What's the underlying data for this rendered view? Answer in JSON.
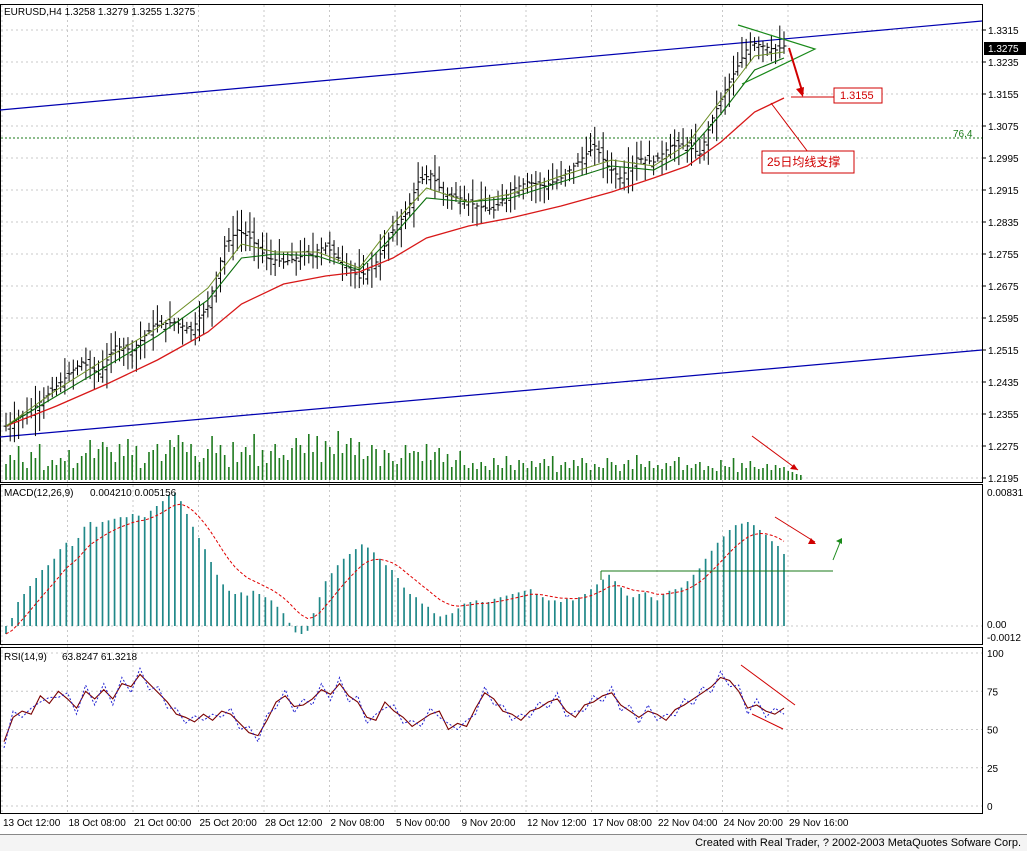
{
  "chart_data": {
    "type": "candlestick",
    "symbol_header": "EURUSD,H4  1.3258 1.3279 1.3255 1.3275",
    "price_axis": {
      "ylim": [
        1.2195,
        1.3335
      ],
      "ticks": [
        "1.3315",
        "1.3235",
        "1.3155",
        "1.3075",
        "1.2995",
        "1.2915",
        "1.2835",
        "1.2755",
        "1.2675",
        "1.2595",
        "1.2515",
        "1.2435",
        "1.2355",
        "1.2275",
        "1.2195"
      ],
      "current_price_label": "1.3275"
    },
    "fib_level": {
      "label": "76.4",
      "value": 1.3045
    },
    "target_label": "1.3155",
    "annotation": "25日均线支撑",
    "x_labels": [
      "13 Oct 12:00",
      "18 Oct 08:00",
      "21 Oct 00:00",
      "25 Oct 20:00",
      "28 Oct 12:00",
      "2 Nov 08:00",
      "5 Nov 00:00",
      "9 Nov 20:00",
      "12 Nov 12:00",
      "17 Nov 08:00",
      "22 Nov 04:00",
      "24 Nov 20:00",
      "29 Nov 16:00"
    ],
    "series": [
      {
        "name": "MACD(12,26,9)",
        "values_text": "0.004210 0.005156",
        "axis_ticks": [
          "0.00831",
          "0.00",
          "-0.0012"
        ]
      },
      {
        "name": "RSI(14,9)",
        "values_text": "63.8247 61.3218",
        "axis_ticks": [
          "100",
          "75",
          "50",
          "25",
          "0"
        ]
      }
    ],
    "price_path": [
      [
        0,
        1.2325
      ],
      [
        6,
        1.2365
      ],
      [
        12,
        1.2425
      ],
      [
        18,
        1.2485
      ],
      [
        22,
        1.2455
      ],
      [
        26,
        1.2525
      ],
      [
        30,
        1.2515
      ],
      [
        35,
        1.2575
      ],
      [
        40,
        1.2585
      ],
      [
        44,
        1.2565
      ],
      [
        48,
        1.2625
      ],
      [
        52,
        1.2775
      ],
      [
        55,
        1.2815
      ],
      [
        58,
        1.2795
      ],
      [
        62,
        1.2745
      ],
      [
        66,
        1.2735
      ],
      [
        72,
        1.2755
      ],
      [
        76,
        1.2775
      ],
      [
        80,
        1.2735
      ],
      [
        84,
        1.2695
      ],
      [
        88,
        1.2735
      ],
      [
        92,
        1.2815
      ],
      [
        95,
        1.2855
      ],
      [
        98,
        1.2935
      ],
      [
        101,
        1.2955
      ],
      [
        104,
        1.2905
      ],
      [
        108,
        1.2895
      ],
      [
        112,
        1.2875
      ],
      [
        116,
        1.2865
      ],
      [
        120,
        1.2915
      ],
      [
        124,
        1.2935
      ],
      [
        128,
        1.2925
      ],
      [
        132,
        1.2945
      ],
      [
        136,
        1.2985
      ],
      [
        140,
        1.3025
      ],
      [
        143,
        1.2975
      ],
      [
        146,
        1.2945
      ],
      [
        150,
        1.2995
      ],
      [
        154,
        1.2985
      ],
      [
        158,
        1.3025
      ],
      [
        162,
        1.3025
      ],
      [
        165,
        1.3005
      ],
      [
        168,
        1.3095
      ],
      [
        171,
        1.3165
      ],
      [
        174,
        1.3225
      ],
      [
        177,
        1.3285
      ],
      [
        180,
        1.3275
      ],
      [
        183,
        1.3265
      ],
      [
        185,
        1.3275
      ]
    ],
    "ma_red_path": [
      [
        0,
        1.2325
      ],
      [
        12,
        1.2375
      ],
      [
        24,
        1.243
      ],
      [
        36,
        1.249
      ],
      [
        48,
        1.256
      ],
      [
        56,
        1.263
      ],
      [
        66,
        1.268
      ],
      [
        76,
        1.27
      ],
      [
        84,
        1.271
      ],
      [
        92,
        1.2745
      ],
      [
        100,
        1.2795
      ],
      [
        110,
        1.2825
      ],
      [
        120,
        1.2845
      ],
      [
        132,
        1.2875
      ],
      [
        144,
        1.291
      ],
      [
        154,
        1.2945
      ],
      [
        162,
        1.2975
      ],
      [
        170,
        1.3035
      ],
      [
        178,
        1.311
      ],
      [
        185,
        1.3145
      ]
    ],
    "ma_green_path": [
      [
        0,
        1.2325
      ],
      [
        12,
        1.24
      ],
      [
        24,
        1.2475
      ],
      [
        36,
        1.255
      ],
      [
        48,
        1.264
      ],
      [
        56,
        1.2745
      ],
      [
        64,
        1.2755
      ],
      [
        74,
        1.275
      ],
      [
        84,
        1.2715
      ],
      [
        92,
        1.28
      ],
      [
        100,
        1.2895
      ],
      [
        110,
        1.2885
      ],
      [
        120,
        1.2895
      ],
      [
        132,
        1.2935
      ],
      [
        144,
        1.2975
      ],
      [
        154,
        1.2965
      ],
      [
        162,
        1.301
      ],
      [
        170,
        1.3105
      ],
      [
        178,
        1.3215
      ],
      [
        185,
        1.3245
      ]
    ],
    "ma_olive_path": [
      [
        0,
        1.2325
      ],
      [
        12,
        1.2415
      ],
      [
        24,
        1.2495
      ],
      [
        36,
        1.257
      ],
      [
        48,
        1.267
      ],
      [
        56,
        1.278
      ],
      [
        64,
        1.276
      ],
      [
        74,
        1.276
      ],
      [
        84,
        1.272
      ],
      [
        92,
        1.283
      ],
      [
        100,
        1.292
      ],
      [
        110,
        1.2885
      ],
      [
        120,
        1.2905
      ],
      [
        132,
        1.295
      ],
      [
        144,
        1.299
      ],
      [
        154,
        1.2975
      ],
      [
        162,
        1.303
      ],
      [
        170,
        1.314
      ],
      [
        178,
        1.325
      ],
      [
        185,
        1.326
      ]
    ],
    "volumes": [
      16,
      25,
      20,
      34,
      18,
      12,
      28,
      22,
      36,
      10,
      14,
      20,
      15,
      22,
      19,
      30,
      12,
      17,
      24,
      27,
      40,
      22,
      31,
      38,
      33,
      28,
      18,
      36,
      24,
      41,
      25,
      34,
      12,
      17,
      28,
      30,
      36,
      19,
      26,
      40,
      33,
      45,
      38,
      28,
      36,
      24,
      18,
      22,
      31,
      44,
      27,
      35,
      25,
      13,
      38,
      18,
      28,
      33,
      25,
      46,
      14,
      30,
      17,
      29,
      36,
      22,
      25,
      20,
      32,
      42,
      35,
      27,
      46,
      28,
      44,
      18,
      39,
      33,
      26,
      49,
      27,
      36,
      42,
      25,
      38,
      21,
      24,
      35,
      31,
      14,
      30,
      27,
      19,
      16,
      22,
      35,
      27,
      29,
      28,
      19,
      36,
      20,
      28,
      32,
      18,
      26,
      13,
      20,
      29,
      15,
      12,
      17,
      11,
      18,
      14,
      10,
      22,
      15,
      12,
      24,
      15,
      10,
      20,
      17,
      12,
      19,
      13,
      17,
      21,
      14,
      24,
      8,
      15,
      18,
      12,
      20,
      14,
      22,
      17,
      10,
      16,
      13,
      12,
      22,
      18,
      15,
      9,
      16,
      20,
      11,
      25,
      16,
      13,
      19,
      12,
      15,
      11,
      17,
      14,
      19,
      23,
      10,
      15,
      12,
      16,
      18,
      10,
      14,
      12,
      9,
      20,
      14,
      13,
      22,
      8,
      17,
      12,
      19,
      13,
      11,
      12,
      16,
      10,
      15,
      12,
      13,
      9,
      8,
      6,
      5
    ],
    "macd_hist": [
      -0.0005,
      0.0005,
      0.0015,
      0.002,
      0.0025,
      0.003,
      0.0035,
      0.0038,
      0.0042,
      0.0048,
      0.0052,
      0.005,
      0.0055,
      0.0062,
      0.0065,
      0.0062,
      0.0065,
      0.0066,
      0.0067,
      0.0068,
      0.0068,
      0.007,
      0.0069,
      0.0068,
      0.0072,
      0.0075,
      0.0078,
      0.0082,
      0.0083,
      0.0078,
      0.007,
      0.0062,
      0.0055,
      0.0048,
      0.004,
      0.0032,
      0.0026,
      0.0022,
      0.002,
      0.0021,
      0.0019,
      0.0022,
      0.002,
      0.0018,
      0.0016,
      0.0012,
      0.0008,
      0.0002,
      -0.0004,
      -0.0005,
      -0.0003,
      0.0008,
      0.0018,
      0.0028,
      0.0033,
      0.0038,
      0.0042,
      0.0045,
      0.0048,
      0.0051,
      0.0049,
      0.0046,
      0.0042,
      0.0038,
      0.0035,
      0.003,
      0.0024,
      0.002,
      0.0018,
      0.0014,
      0.0012,
      0.0008,
      0.0006,
      0.0007,
      0.0008,
      0.0011,
      0.0014,
      0.0015,
      0.0016,
      0.0015,
      0.0015,
      0.0017,
      0.0018,
      0.0019,
      0.002,
      0.0021,
      0.0022,
      0.0023,
      0.002,
      0.0018,
      0.0016,
      0.0016,
      0.0015,
      0.0017,
      0.0016,
      0.0018,
      0.002,
      0.0023,
      0.0026,
      0.0029,
      0.0032,
      0.0028,
      0.0024,
      0.0019,
      0.0018,
      0.002,
      0.0021,
      0.0018,
      0.0016,
      0.002,
      0.0022,
      0.0023,
      0.0024,
      0.0028,
      0.0032,
      0.0036,
      0.0042,
      0.0047,
      0.0052,
      0.0056,
      0.006,
      0.0063,
      0.0064,
      0.0065,
      0.0063,
      0.006,
      0.0057,
      0.0053,
      0.005,
      0.0045
    ],
    "rsi_points": [
      [
        0,
        42
      ],
      [
        2,
        58
      ],
      [
        4,
        62
      ],
      [
        6,
        60
      ],
      [
        8,
        72
      ],
      [
        10,
        67
      ],
      [
        12,
        75
      ],
      [
        14,
        70
      ],
      [
        16,
        64
      ],
      [
        18,
        75
      ],
      [
        20,
        70
      ],
      [
        22,
        76
      ],
      [
        24,
        70
      ],
      [
        26,
        80
      ],
      [
        28,
        78
      ],
      [
        30,
        86
      ],
      [
        32,
        80
      ],
      [
        34,
        74
      ],
      [
        36,
        68
      ],
      [
        38,
        60
      ],
      [
        40,
        58
      ],
      [
        42,
        55
      ],
      [
        44,
        60
      ],
      [
        46,
        56
      ],
      [
        48,
        62
      ],
      [
        50,
        60
      ],
      [
        52,
        54
      ],
      [
        54,
        48
      ],
      [
        56,
        46
      ],
      [
        58,
        56
      ],
      [
        60,
        68
      ],
      [
        62,
        72
      ],
      [
        64,
        65
      ],
      [
        66,
        66
      ],
      [
        68,
        70
      ],
      [
        70,
        76
      ],
      [
        72,
        73
      ],
      [
        74,
        80
      ],
      [
        76,
        72
      ],
      [
        78,
        68
      ],
      [
        80,
        58
      ],
      [
        82,
        56
      ],
      [
        84,
        68
      ],
      [
        86,
        62
      ],
      [
        88,
        58
      ],
      [
        90,
        52
      ],
      [
        92,
        56
      ],
      [
        94,
        60
      ],
      [
        96,
        62
      ],
      [
        98,
        50
      ],
      [
        100,
        54
      ],
      [
        102,
        52
      ],
      [
        104,
        64
      ],
      [
        106,
        74
      ],
      [
        108,
        70
      ],
      [
        110,
        62
      ],
      [
        112,
        60
      ],
      [
        114,
        56
      ],
      [
        116,
        62
      ],
      [
        118,
        64
      ],
      [
        120,
        68
      ],
      [
        122,
        70
      ],
      [
        124,
        62
      ],
      [
        126,
        58
      ],
      [
        128,
        66
      ],
      [
        130,
        68
      ],
      [
        132,
        72
      ],
      [
        134,
        74
      ],
      [
        136,
        66
      ],
      [
        138,
        62
      ],
      [
        140,
        58
      ],
      [
        142,
        62
      ],
      [
        144,
        60
      ],
      [
        146,
        56
      ],
      [
        148,
        63
      ],
      [
        150,
        66
      ],
      [
        152,
        70
      ],
      [
        154,
        74
      ],
      [
        156,
        78
      ],
      [
        158,
        84
      ],
      [
        160,
        82
      ],
      [
        162,
        75
      ],
      [
        164,
        64
      ],
      [
        166,
        66
      ],
      [
        168,
        62
      ],
      [
        170,
        60
      ],
      [
        172,
        64
      ]
    ]
  }
}
